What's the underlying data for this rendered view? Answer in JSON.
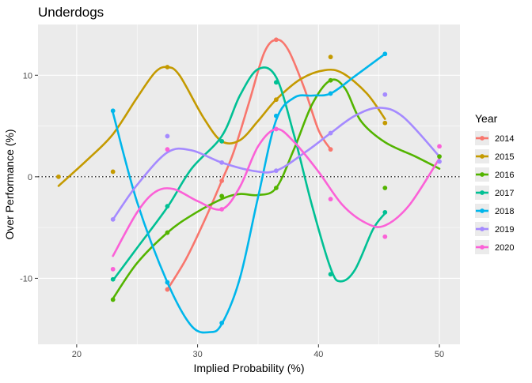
{
  "chart_data": {
    "type": "scatter",
    "title": "Underdogs",
    "xlabel": "Implied Probability (%)",
    "ylabel": "Over Performance (%)",
    "xlim": [
      16.8,
      51.7
    ],
    "ylim": [
      -16.5,
      15
    ],
    "xticks": [
      20,
      30,
      40,
      50
    ],
    "yticks": [
      -10,
      0,
      10
    ],
    "grid": true,
    "reference_line": {
      "y": 0,
      "style": "dotted"
    },
    "legend": {
      "title": "Year",
      "position": "right"
    },
    "series": [
      {
        "name": "2014",
        "color": "#F8766D",
        "points": [
          [
            27.5,
            -11.1
          ],
          [
            32.0,
            -0.4
          ],
          [
            36.5,
            13.5
          ],
          [
            41.0,
            2.7
          ]
        ],
        "curve": [
          [
            27.5,
            -11.1
          ],
          [
            29,
            -8.2
          ],
          [
            30.5,
            -4.5
          ],
          [
            32.0,
            -0.4
          ],
          [
            33,
            2.5
          ],
          [
            34.3,
            7.5
          ],
          [
            35.5,
            12.2
          ],
          [
            36.5,
            13.5
          ],
          [
            37.5,
            12.5
          ],
          [
            38.8,
            8.8
          ],
          [
            40,
            4.6
          ],
          [
            41.0,
            2.7
          ]
        ]
      },
      {
        "name": "2015",
        "color": "#C49A00",
        "points": [
          [
            18.5,
            0.0
          ],
          [
            23.0,
            0.5
          ],
          [
            27.5,
            10.8
          ],
          [
            32.0,
            3.5
          ],
          [
            36.5,
            7.6
          ],
          [
            41.0,
            11.8
          ],
          [
            45.5,
            5.3
          ]
        ],
        "curve": [
          [
            18.5,
            -0.9
          ],
          [
            21,
            1.8
          ],
          [
            23.0,
            4.2
          ],
          [
            25,
            7.8
          ],
          [
            26.5,
            10.3
          ],
          [
            27.5,
            10.8
          ],
          [
            28.5,
            10.0
          ],
          [
            30.5,
            5.8
          ],
          [
            32.0,
            3.5
          ],
          [
            33.5,
            3.6
          ],
          [
            35,
            5.5
          ],
          [
            36.5,
            7.6
          ],
          [
            38.5,
            9.6
          ],
          [
            40.5,
            10.5
          ],
          [
            42,
            10.2
          ],
          [
            44,
            8.2
          ],
          [
            45.5,
            5.7
          ]
        ]
      },
      {
        "name": "2016",
        "color": "#53B400",
        "points": [
          [
            23.0,
            -12.1
          ],
          [
            27.5,
            -5.5
          ],
          [
            32.0,
            -1.9
          ],
          [
            36.5,
            -1.1
          ],
          [
            41.0,
            9.5
          ],
          [
            45.5,
            -1.1
          ],
          [
            50.0,
            2.0
          ]
        ],
        "curve": [
          [
            23.0,
            -12.0
          ],
          [
            25,
            -8.5
          ],
          [
            27.5,
            -5.5
          ],
          [
            29.5,
            -3.8
          ],
          [
            32.0,
            -2.2
          ],
          [
            33.5,
            -1.7
          ],
          [
            35,
            -1.8
          ],
          [
            36.5,
            -1.1
          ],
          [
            38,
            2.8
          ],
          [
            39.5,
            7.2
          ],
          [
            41.0,
            9.5
          ],
          [
            42.2,
            8.7
          ],
          [
            43.5,
            5.5
          ],
          [
            45.5,
            3.4
          ],
          [
            48,
            2.0
          ],
          [
            50.0,
            0.8
          ]
        ]
      },
      {
        "name": "2017",
        "color": "#00C094",
        "points": [
          [
            23.0,
            -10.1
          ],
          [
            27.5,
            -2.9
          ],
          [
            32.0,
            3.5
          ],
          [
            36.5,
            9.3
          ],
          [
            41.0,
            -9.6
          ],
          [
            45.5,
            -3.5
          ]
        ],
        "curve": [
          [
            23.0,
            -10.2
          ],
          [
            25,
            -7.0
          ],
          [
            27.5,
            -3.0
          ],
          [
            29.5,
            0.8
          ],
          [
            32.0,
            4.0
          ],
          [
            33.5,
            8.0
          ],
          [
            35,
            10.6
          ],
          [
            36.5,
            9.8
          ],
          [
            38,
            4.0
          ],
          [
            39.5,
            -3.0
          ],
          [
            41.0,
            -9.0
          ],
          [
            41.8,
            -10.3
          ],
          [
            43,
            -9.2
          ],
          [
            44.5,
            -5.2
          ],
          [
            45.5,
            -3.6
          ]
        ]
      },
      {
        "name": "2018",
        "color": "#00B6EB",
        "points": [
          [
            23.0,
            6.5
          ],
          [
            27.5,
            -10.4
          ],
          [
            32.0,
            -14.4
          ],
          [
            36.5,
            6.0
          ],
          [
            41.0,
            8.2
          ],
          [
            45.5,
            12.1
          ]
        ],
        "curve": [
          [
            23.0,
            6.3
          ],
          [
            25,
            -2.5
          ],
          [
            27.5,
            -10.4
          ],
          [
            29.5,
            -14.7
          ],
          [
            31,
            -15.3
          ],
          [
            32.0,
            -14.5
          ],
          [
            33.5,
            -10.0
          ],
          [
            35,
            -2.0
          ],
          [
            36.5,
            5.6
          ],
          [
            38,
            7.8
          ],
          [
            39.5,
            8.0
          ],
          [
            41.0,
            8.2
          ],
          [
            43,
            9.9
          ],
          [
            45.5,
            12.1
          ]
        ]
      },
      {
        "name": "2019",
        "color": "#A58AFF",
        "points": [
          [
            23.0,
            -4.2
          ],
          [
            27.5,
            4.0
          ],
          [
            32.0,
            1.4
          ],
          [
            36.5,
            0.6
          ],
          [
            41.0,
            4.3
          ],
          [
            45.5,
            8.1
          ],
          [
            50.0,
            1.5
          ]
        ],
        "curve": [
          [
            23.0,
            -4.2
          ],
          [
            25,
            -0.8
          ],
          [
            27.5,
            2.4
          ],
          [
            29.5,
            2.6
          ],
          [
            32.0,
            1.4
          ],
          [
            34.5,
            0.6
          ],
          [
            36.5,
            0.6
          ],
          [
            39,
            2.5
          ],
          [
            41.0,
            4.3
          ],
          [
            43,
            6.0
          ],
          [
            45,
            6.8
          ],
          [
            47,
            5.9
          ],
          [
            50.0,
            2.0
          ]
        ]
      },
      {
        "name": "2020",
        "color": "#FB61D7",
        "points": [
          [
            23.0,
            -9.1
          ],
          [
            27.5,
            2.7
          ],
          [
            32.0,
            -3.2
          ],
          [
            36.5,
            4.7
          ],
          [
            41.0,
            -2.2
          ],
          [
            45.5,
            -5.9
          ],
          [
            50.0,
            3.0
          ]
        ],
        "curve": [
          [
            23.0,
            -7.8
          ],
          [
            25,
            -3.5
          ],
          [
            26.5,
            -1.5
          ],
          [
            28,
            -1.2
          ],
          [
            30,
            -2.4
          ],
          [
            32.0,
            -3.2
          ],
          [
            33.5,
            -1.0
          ],
          [
            35,
            3.0
          ],
          [
            36.5,
            4.7
          ],
          [
            38,
            3.4
          ],
          [
            40,
            0.5
          ],
          [
            42,
            -2.8
          ],
          [
            44,
            -4.6
          ],
          [
            45.5,
            -4.8
          ],
          [
            47.5,
            -2.8
          ],
          [
            50.0,
            1.8
          ]
        ]
      }
    ]
  }
}
